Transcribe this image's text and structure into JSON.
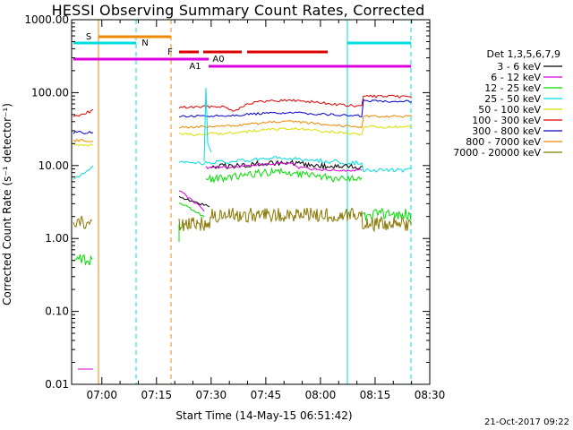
{
  "chart_data": {
    "type": "line",
    "title": "HESSI Observing Summary Count Rates, Corrected",
    "xlabel": "Start Time (14-May-15 06:51:42)",
    "ylabel": "Corrected Count Rate (s⁻¹ detector⁻¹)",
    "yscale": "log",
    "ylim": [
      0.01,
      1000
    ],
    "xlim": [
      "06:51:42",
      "08:30:00"
    ],
    "x_ticks": [
      "07:00",
      "07:15",
      "07:30",
      "07:45",
      "08:00",
      "08:15",
      "08:30"
    ],
    "y_ticks": [
      "1000.00",
      "100.00",
      "10.00",
      "1.00",
      "0.10",
      "0.01"
    ],
    "legend_title": "Det 1,3,5,6,7,9",
    "legend_placement": "right",
    "series": [
      {
        "name": "3 - 6 keV",
        "color": "#000000"
      },
      {
        "name": "6 - 12 keV",
        "color": "#dd00dd"
      },
      {
        "name": "12 - 25 keV",
        "color": "#00dd00"
      },
      {
        "name": "25 - 50 keV",
        "color": "#00dddd"
      },
      {
        "name": "50 - 100 keV",
        "color": "#dddd00"
      },
      {
        "name": "100 - 300 keV",
        "color": "#dd0000"
      },
      {
        "name": "300 - 800 keV",
        "color": "#0000cc"
      },
      {
        "name": "800 - 7000 keV",
        "color": "#ee8800"
      },
      {
        "name": "7000 - 20000 keV",
        "color": "#887700"
      }
    ],
    "bar_labels": {
      "s": "S",
      "n": "N",
      "f": "F",
      "a0": "A0",
      "a1": "A1"
    },
    "footer_date": "21-Oct-2017 09:22"
  }
}
